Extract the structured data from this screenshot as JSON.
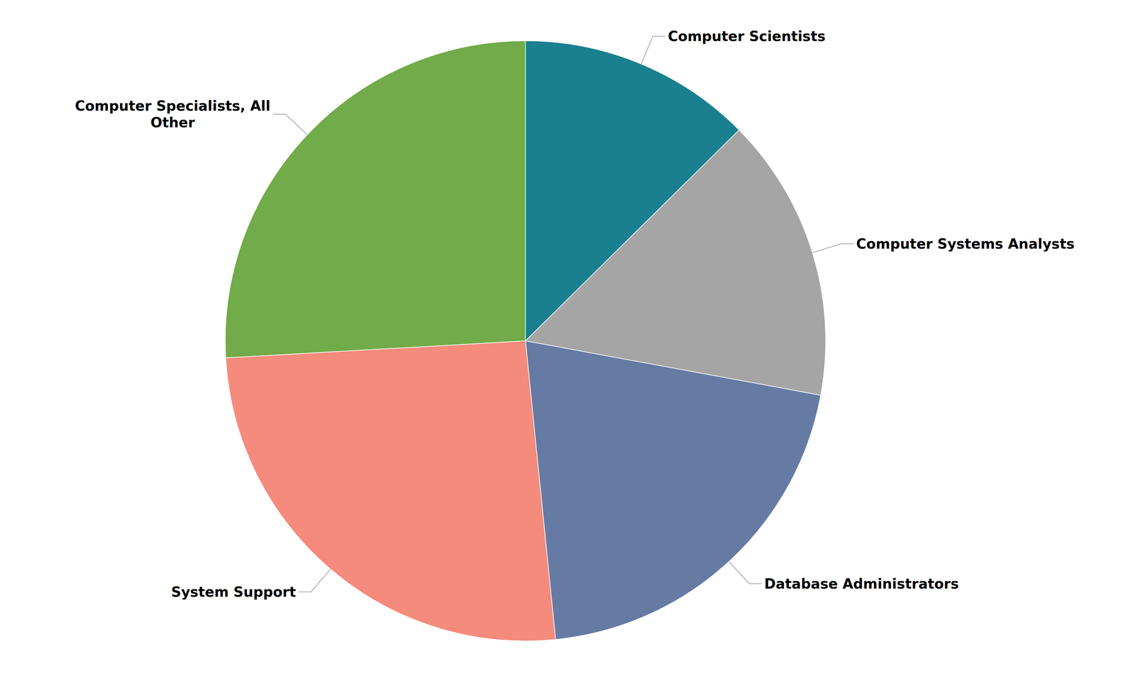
{
  "chart_data": {
    "type": "pie",
    "categories": [
      "Computer Scientists",
      "Computer Systems Analysts",
      "Database Administrators",
      "System Support",
      "Computer Specialists, All Other"
    ],
    "values": [
      12.6,
      15.3,
      20.5,
      25.7,
      25.9
    ],
    "colors": [
      "#1a7f8f",
      "#a5a5a5",
      "#667ba4",
      "#f48b7c",
      "#72ab49"
    ]
  }
}
